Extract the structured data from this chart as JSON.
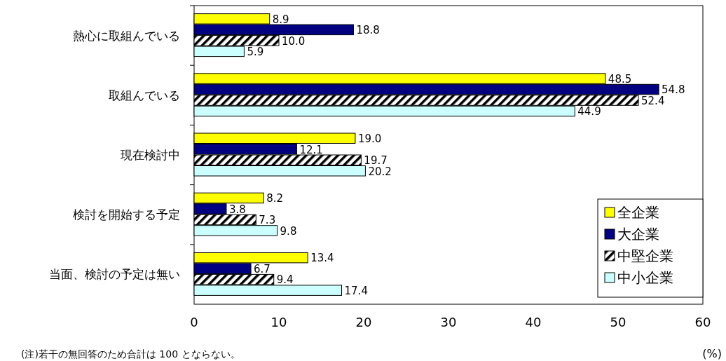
{
  "chart_data": {
    "type": "bar",
    "orientation": "horizontal",
    "categories": [
      "熱心に取組んでいる",
      "取組んでいる",
      "現在検討中",
      "検討を開始する予定",
      "当面、検討の予定は無い"
    ],
    "series": [
      {
        "name": "全企業",
        "color": "#ffff00",
        "values": [
          8.9,
          48.5,
          19.0,
          8.2,
          13.4
        ],
        "value_labels": [
          "8.9",
          "48.5",
          "19.0",
          "8.2",
          "13.4"
        ]
      },
      {
        "name": "大企業",
        "color": "#000080",
        "values": [
          18.8,
          54.8,
          12.1,
          3.8,
          6.7
        ],
        "value_labels": [
          "18.8",
          "54.8",
          "12.1",
          "3.8",
          "6.7"
        ]
      },
      {
        "name": "中堅企業",
        "color": "#000000",
        "values": [
          10.0,
          52.4,
          19.7,
          7.3,
          9.4
        ],
        "value_labels": [
          "10.0",
          "52.4",
          "19.7",
          "7.3",
          "9.4"
        ]
      },
      {
        "name": "中小企業",
        "color": "#ccffff",
        "values": [
          5.9,
          44.9,
          20.2,
          9.8,
          17.4
        ],
        "value_labels": [
          "5.9",
          "44.9",
          "20.2",
          "9.8",
          "17.4"
        ]
      }
    ],
    "xlim": [
      0,
      60
    ],
    "xticks": [
      0,
      10,
      20,
      30,
      40,
      50,
      60
    ],
    "xlabel": "(%)",
    "grid": false,
    "legend": "bottom right",
    "annotations": [
      "(注)若干の無回答のため合計は 100 とならない。"
    ]
  }
}
